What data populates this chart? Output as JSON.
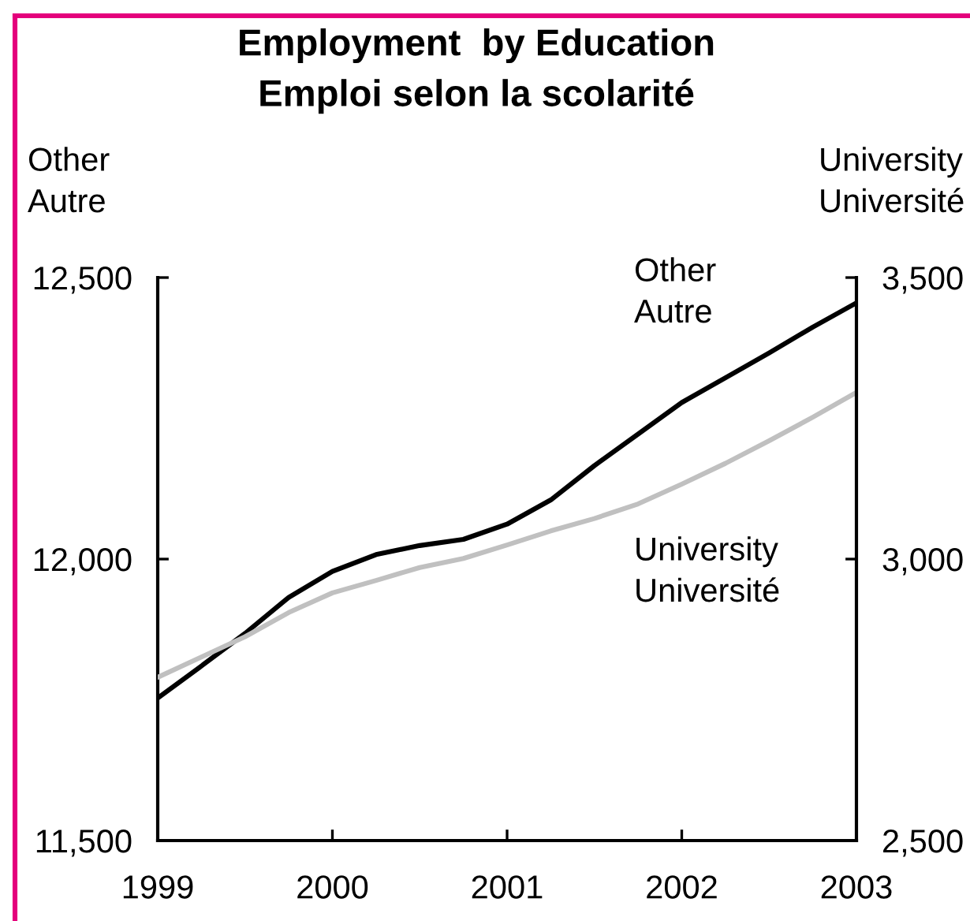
{
  "chart_data": {
    "type": "line",
    "title": "Employment  by Education",
    "subtitle": "Emploi selon la scolarité",
    "ylabel": "Other\nAutre",
    "y2label": "University\nUniversité",
    "x": [
      1999,
      1999.25,
      1999.5,
      1999.75,
      2000,
      2000.25,
      2000.5,
      2000.75,
      2001,
      2001.25,
      2001.5,
      2001.75,
      2002,
      2002.25,
      2002.5,
      2002.75,
      2003
    ],
    "xlim": [
      1999,
      2003
    ],
    "xticks": [
      1999,
      2000,
      2001,
      2002,
      2003
    ],
    "ylim": [
      11500,
      12500
    ],
    "yticks": [
      {
        "value": 11500,
        "label": "11,500"
      },
      {
        "value": 12000,
        "label": "12,000"
      },
      {
        "value": 12500,
        "label": "12,500"
      }
    ],
    "y2lim": [
      2500,
      3500
    ],
    "y2ticks": [
      {
        "value": 2500,
        "label": "2,500"
      },
      {
        "value": 3000,
        "label": "3,000"
      },
      {
        "value": 3500,
        "label": "3,500"
      }
    ],
    "line_style": "solid",
    "series": [
      {
        "name": "Other\nAutre",
        "color": "#000000",
        "values": [
          11753,
          11810,
          11868,
          11932,
          11978,
          12008,
          12024,
          12035,
          12062,
          12105,
          12166,
          12222,
          12278,
          12322,
          12366,
          12412,
          12455
        ]
      },
      {
        "name": "University\nUniversité",
        "color": "#c0c0c0",
        "axis": "y2",
        "values": [
          2790,
          2826,
          2862,
          2905,
          2940,
          2962,
          2985,
          3001,
          3025,
          3050,
          3072,
          3098,
          3133,
          3170,
          3210,
          3252,
          3296
        ]
      }
    ]
  }
}
